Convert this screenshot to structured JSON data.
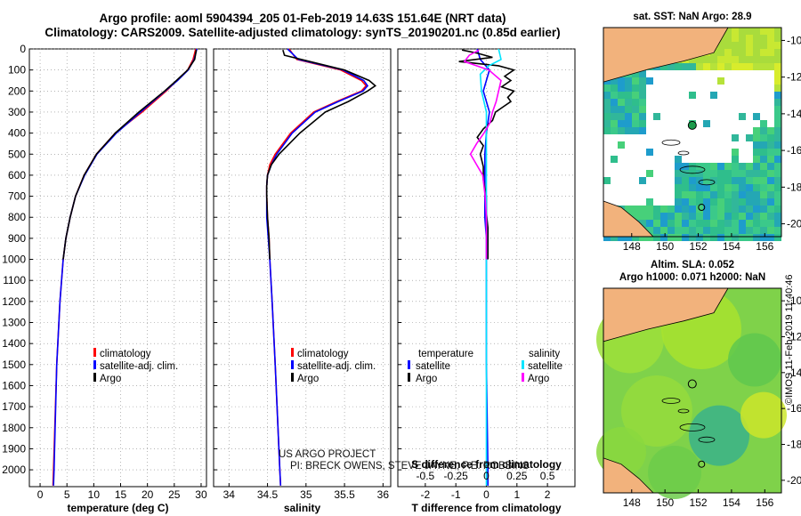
{
  "title_line1": "Argo profile: aoml 5904394_205 01-Feb-2019 14.63S 151.64E (NRT data)",
  "title_line2": "Climatology: CARS2009. Satellite-adjusted climatology: synTS_20190201.nc (0.85d earlier)",
  "colors": {
    "climatology": "#ff0000",
    "satellite": "#0000ff",
    "argo": "#000000",
    "salinity_satellite": "#00e5ff",
    "salinity_argo": "#ff00ff"
  },
  "chart_data": [
    {
      "type": "line",
      "name": "temperature",
      "xlabel": "temperature (deg C)",
      "xlim": [
        -2,
        31
      ],
      "ylim": [
        2080,
        0
      ],
      "xticks": [
        "0",
        "5",
        "10",
        "15",
        "20",
        "25",
        "30"
      ],
      "depth_ticks": [
        "0",
        "100",
        "200",
        "300",
        "400",
        "500",
        "600",
        "700",
        "800",
        "900",
        "1000",
        "1100",
        "1200",
        "1300",
        "1400",
        "1500",
        "1600",
        "1700",
        "1800",
        "1900",
        "2000"
      ],
      "series": [
        {
          "name": "climatology",
          "depth": [
            0,
            50,
            100,
            150,
            200,
            300,
            400,
            500,
            600,
            700,
            800,
            900,
            1000,
            1200,
            1500,
            2000,
            2075
          ],
          "values": [
            29,
            28.5,
            27.5,
            25.5,
            23.5,
            19,
            14,
            10.5,
            8.2,
            6.6,
            5.6,
            4.8,
            4.3,
            3.7,
            3.1,
            2.5,
            2.4
          ]
        },
        {
          "name": "satellite",
          "depth": [
            0,
            50,
            100,
            150,
            200,
            300,
            400,
            500,
            600,
            700,
            800,
            900,
            1000,
            1200,
            1500,
            2000,
            2075
          ],
          "values": [
            29.2,
            28.7,
            27.6,
            25.6,
            23.3,
            18.7,
            14.2,
            10.6,
            8.3,
            6.6,
            5.6,
            4.8,
            4.3,
            3.7,
            3.1,
            2.6,
            2.5
          ]
        },
        {
          "name": "Argo",
          "depth": [
            5,
            50,
            100,
            150,
            200,
            300,
            400,
            500,
            600,
            700,
            800,
            900,
            1000
          ],
          "values": [
            29.1,
            28.8,
            27.5,
            25.4,
            23.2,
            18.4,
            14,
            10.5,
            8.2,
            6.6,
            5.6,
            4.8,
            4.3
          ]
        }
      ],
      "legend": [
        "climatology",
        "satellite-adj. clim.",
        "Argo"
      ]
    },
    {
      "type": "line",
      "name": "salinity",
      "xlabel": "salinity",
      "xlim": [
        33.8,
        36.1
      ],
      "ylim": [
        2080,
        0
      ],
      "xticks": [
        "34",
        "34.5",
        "35",
        "35.5",
        "36"
      ],
      "series": [
        {
          "name": "climatology",
          "depth": [
            0,
            50,
            100,
            150,
            175,
            200,
            250,
            300,
            400,
            500,
            550,
            600,
            650,
            700,
            800,
            900,
            1000,
            1200,
            1500,
            2000,
            2075
          ],
          "values": [
            34.78,
            34.88,
            35.45,
            35.72,
            35.78,
            35.72,
            35.4,
            35.1,
            34.8,
            34.6,
            34.53,
            34.5,
            34.49,
            34.49,
            34.5,
            34.52,
            34.53,
            34.56,
            34.6,
            34.66,
            34.67
          ]
        },
        {
          "name": "satellite",
          "depth": [
            0,
            50,
            100,
            150,
            175,
            200,
            250,
            300,
            400,
            500,
            550,
            600,
            650,
            700,
            800,
            900,
            1000,
            1200,
            1500,
            2000,
            2075
          ],
          "values": [
            34.76,
            34.9,
            35.48,
            35.75,
            35.8,
            35.74,
            35.42,
            35.12,
            34.82,
            34.62,
            34.55,
            34.5,
            34.49,
            34.49,
            34.49,
            34.51,
            34.53,
            34.56,
            34.6,
            34.66,
            34.67
          ]
        },
        {
          "name": "Argo",
          "depth": [
            5,
            30,
            60,
            100,
            150,
            175,
            200,
            250,
            300,
            400,
            500,
            550,
            600,
            650,
            700,
            800,
            900,
            1000
          ],
          "values": [
            34.7,
            34.72,
            35.05,
            35.5,
            35.82,
            35.9,
            35.8,
            35.55,
            35.25,
            34.92,
            34.65,
            34.55,
            34.5,
            34.49,
            34.49,
            34.5,
            34.52,
            34.53
          ]
        }
      ],
      "legend": [
        "climatology",
        "satellite-adj. clim.",
        "Argo"
      ]
    },
    {
      "type": "line",
      "name": "difference",
      "xlabel": "T difference from climatology",
      "top_xlabel": "S difference from climatology",
      "xlim": [
        -2.9,
        2.9
      ],
      "ylim": [
        2080,
        0
      ],
      "xticks": [
        "-2",
        "-1",
        "0",
        "1",
        "2"
      ],
      "top_xticks": [
        "-0.5",
        "-0.25",
        "0",
        "0.25",
        "0.5"
      ],
      "series": [
        {
          "name": "temperature satellite",
          "depth": [
            0,
            50,
            100,
            200,
            300,
            400,
            500,
            600,
            700,
            800,
            900,
            1000,
            1200,
            1500,
            2000,
            2075
          ],
          "values": [
            -0.3,
            -0.2,
            0.1,
            -0.1,
            0.1,
            0,
            -0.05,
            -0.05,
            -0.05,
            -0.05,
            0,
            0,
            0,
            0,
            0.05,
            0.05
          ]
        },
        {
          "name": "temperature Argo",
          "depth": [
            5,
            20,
            40,
            60,
            80,
            100,
            130,
            150,
            180,
            200,
            230,
            250,
            280,
            300,
            340,
            380,
            420,
            460,
            500,
            560,
            620,
            700,
            780,
            850,
            930,
            1000
          ],
          "values": [
            -0.8,
            -0.3,
            0.2,
            -0.9,
            0.4,
            0.9,
            0.6,
            0.8,
            0.5,
            0.9,
            0.7,
            0.8,
            0.5,
            0.3,
            0.2,
            -0.1,
            -0.3,
            -0.1,
            -0.2,
            -0.1,
            -0.1,
            0,
            0,
            0.05,
            0.05,
            0.05
          ]
        },
        {
          "name": "salinity satellite",
          "depth": [
            0,
            50,
            80,
            120,
            200,
            300,
            400,
            500,
            700,
            1000,
            1500,
            2000,
            2075
          ],
          "values": [
            0.1,
            0.12,
            0.02,
            -0.05,
            -0.04,
            0,
            0,
            0,
            0,
            0,
            0,
            0,
            0
          ]
        },
        {
          "name": "salinity Argo",
          "depth": [
            5,
            30,
            60,
            100,
            150,
            200,
            250,
            300,
            350,
            400,
            450,
            500,
            550,
            600,
            700,
            800,
            1000
          ],
          "values": [
            -0.06,
            -0.14,
            -0.18,
            0.02,
            0.12,
            0.1,
            0.08,
            0.05,
            0.03,
            -0.02,
            -0.08,
            -0.13,
            -0.08,
            -0.03,
            -0.01,
            0,
            0
          ]
        }
      ],
      "legend_temperature_header": "temperature",
      "legend_salinity_header": "salinity",
      "legend_items": [
        "satellite",
        "Argo"
      ]
    }
  ],
  "map_sst": {
    "title": "sat. SST: NaN Argo: 28.9",
    "yticks": [
      "-10",
      "-12",
      "-14",
      "-16",
      "-18",
      "-20"
    ],
    "xticks": [
      "148",
      "150",
      "152",
      "154",
      "156"
    ]
  },
  "map_sla": {
    "title_line1": "Altim. SLA: 0.052",
    "title_line2": "Argo h1000: 0.071 h2000: NaN",
    "yticks": [
      "-10",
      "-12",
      "-14",
      "-16",
      "-18",
      "-20"
    ],
    "xticks": [
      "148",
      "150",
      "152",
      "154",
      "156"
    ]
  },
  "credit_line1": "US ARGO PROJECT",
  "credit_line2": "PI: BRECK OWENS, STEVE JAYNE, P.E. ROBBINS",
  "stamp": "©IMOS 11-Feb-2019 11:40:46"
}
